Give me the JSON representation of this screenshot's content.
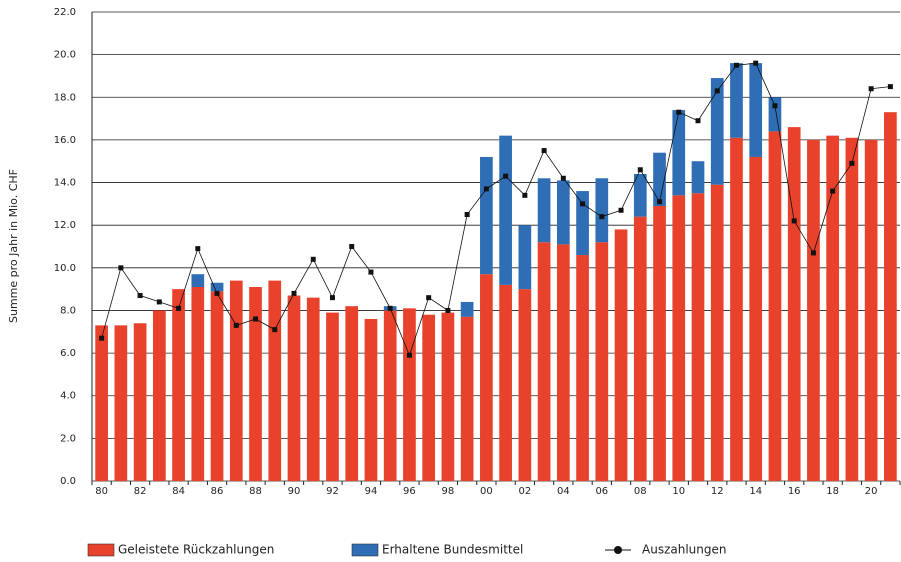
{
  "chart_data": {
    "type": "bar",
    "stacked": true,
    "grid": true,
    "legend": "bottom",
    "y_label": "Summe pro Jahr in Mio. CHF",
    "categories": [
      "80",
      null,
      "82",
      null,
      "84",
      null,
      "86",
      null,
      "88",
      null,
      "90",
      null,
      "92",
      null,
      "94",
      null,
      "96",
      null,
      "98",
      null,
      "00",
      null,
      "02",
      null,
      "04",
      null,
      "06",
      null,
      "08",
      null,
      "10",
      null,
      "12",
      null,
      "14",
      null,
      "16",
      null,
      "18",
      null,
      "20",
      null
    ],
    "ylim": [
      0,
      22
    ],
    "yticks": [
      {
        "value": 0,
        "label": "0.0"
      },
      {
        "value": 2,
        "label": "2.0"
      },
      {
        "value": 4,
        "label": "4.0"
      },
      {
        "value": 6,
        "label": "6.0"
      },
      {
        "value": 8,
        "label": "8.0"
      },
      {
        "value": 10,
        "label": "10.0"
      },
      {
        "value": 12,
        "label": "12.0"
      },
      {
        "value": 14,
        "label": "14.0"
      },
      {
        "value": 16,
        "label": "16.0"
      },
      {
        "value": 18,
        "label": "18.0"
      },
      {
        "value": 20,
        "label": "20.0"
      },
      {
        "value": 22,
        "label": "22.0"
      }
    ],
    "series": [
      {
        "name": "Geleistete Rückzahlungen",
        "color": "#e8412c",
        "kind": "bar",
        "values": [
          7.3,
          7.3,
          7.4,
          8.0,
          9.0,
          9.1,
          8.9,
          9.4,
          9.1,
          9.4,
          8.7,
          8.6,
          7.9,
          8.2,
          7.6,
          8.0,
          8.1,
          7.8,
          7.9,
          7.7,
          9.7,
          9.2,
          9.0,
          11.2,
          11.1,
          10.6,
          11.2,
          11.8,
          12.4,
          12.9,
          13.4,
          13.5,
          13.9,
          16.1,
          15.2,
          16.4,
          16.6,
          16.0,
          16.2,
          16.1,
          16.0,
          17.3
        ]
      },
      {
        "name": "Erhaltene Bundesmittel",
        "color": "#2f6db5",
        "kind": "bar",
        "values": [
          0,
          0,
          0,
          0,
          0,
          0.6,
          0.4,
          0,
          0,
          0,
          0,
          0,
          0,
          0,
          0,
          0.2,
          0,
          0,
          0,
          0.7,
          5.5,
          7.0,
          3.0,
          3.0,
          3.0,
          3.0,
          3.0,
          0,
          2.0,
          2.5,
          4.0,
          1.5,
          5.0,
          3.5,
          4.4,
          1.6,
          0,
          0,
          0,
          0,
          0,
          0
        ]
      },
      {
        "name": "Auszahlungen",
        "color": "#111111",
        "kind": "line",
        "values": [
          6.7,
          10.0,
          8.7,
          8.4,
          8.1,
          10.9,
          8.8,
          7.3,
          7.6,
          7.1,
          8.8,
          10.4,
          8.6,
          11.0,
          9.8,
          8.1,
          5.9,
          8.6,
          8.0,
          12.5,
          13.7,
          14.3,
          13.4,
          15.5,
          14.2,
          13.0,
          12.4,
          12.7,
          14.6,
          13.1,
          17.3,
          16.9,
          18.3,
          19.5,
          19.6,
          17.6,
          12.2,
          10.7,
          13.6,
          14.9,
          18.4,
          18.5
        ]
      }
    ]
  }
}
